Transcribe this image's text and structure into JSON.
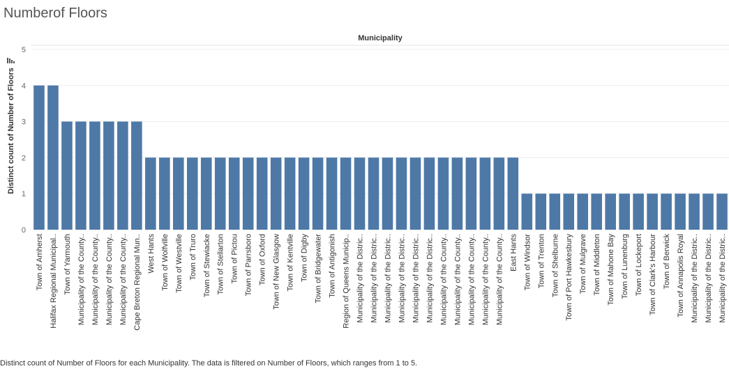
{
  "page": {
    "title": "Numberof Floors",
    "caption": "Distinct count of Number of Floors for each Municipality. The data is filtered on Number of Floors, which ranges from 1 to 5.",
    "sort_icon": "sort-descending-icon"
  },
  "colors": {
    "bar": "#4e79a7",
    "grid": "#ececec",
    "axis_text": "#666666",
    "label_text": "#333333"
  },
  "chart_data": {
    "type": "bar",
    "title": "Numberof Floors",
    "column_header": "Municipality",
    "ylabel": "Distinct count of Number of Floors",
    "ylim": [
      0,
      5
    ],
    "yticks": [
      0,
      1,
      2,
      3,
      4,
      5
    ],
    "grid": true,
    "categories": [
      "Town of Amherst",
      "Halifax Regional Municipal..",
      "Town of Yarmouth",
      "Municipality of the County..",
      "Municipality of the County..",
      "Municipality of the County..",
      "Municipality of the County..",
      "Cape Breton Regional Mun..",
      "West Hants",
      "Town of Wolfville",
      "Town of Westville",
      "Town of Truro",
      "Town of Stewiacke",
      "Town of Stellarton",
      "Town of Pictou",
      "Town of Parrsboro",
      "Town of Oxford",
      "Town of New Glasgow",
      "Town of Kentville",
      "Town of Digby",
      "Town of Bridgewater",
      "Town of Antigonish",
      "Region of Queens Municip..",
      "Municipality of the Distric..",
      "Municipality of the Distric..",
      "Municipality of the Distric..",
      "Municipality of the Distric..",
      "Municipality of the Distric..",
      "Municipality of the Distric..",
      "Municipality of the County..",
      "Municipality of the County..",
      "Municipality of the County..",
      "Municipality of the County..",
      "Municipality of the County..",
      "East Hants",
      "Town of Windsor",
      "Town of Trenton",
      "Town of Shelburne",
      "Town of Port Hawkesbury",
      "Town of Mulgrave",
      "Town of Middleton",
      "Town of Mahone Bay",
      "Town of Lunenburg",
      "Town of Lockeport",
      "Town of Clark's Harbour",
      "Town of Berwick",
      "Town of Annapolis Royal",
      "Municipality of the Distric..",
      "Municipality of the Distric..",
      "Municipality of the Distric.."
    ],
    "values": [
      4,
      4,
      3,
      3,
      3,
      3,
      3,
      3,
      2,
      2,
      2,
      2,
      2,
      2,
      2,
      2,
      2,
      2,
      2,
      2,
      2,
      2,
      2,
      2,
      2,
      2,
      2,
      2,
      2,
      2,
      2,
      2,
      2,
      2,
      2,
      1,
      1,
      1,
      1,
      1,
      1,
      1,
      1,
      1,
      1,
      1,
      1,
      1,
      1,
      1
    ]
  }
}
